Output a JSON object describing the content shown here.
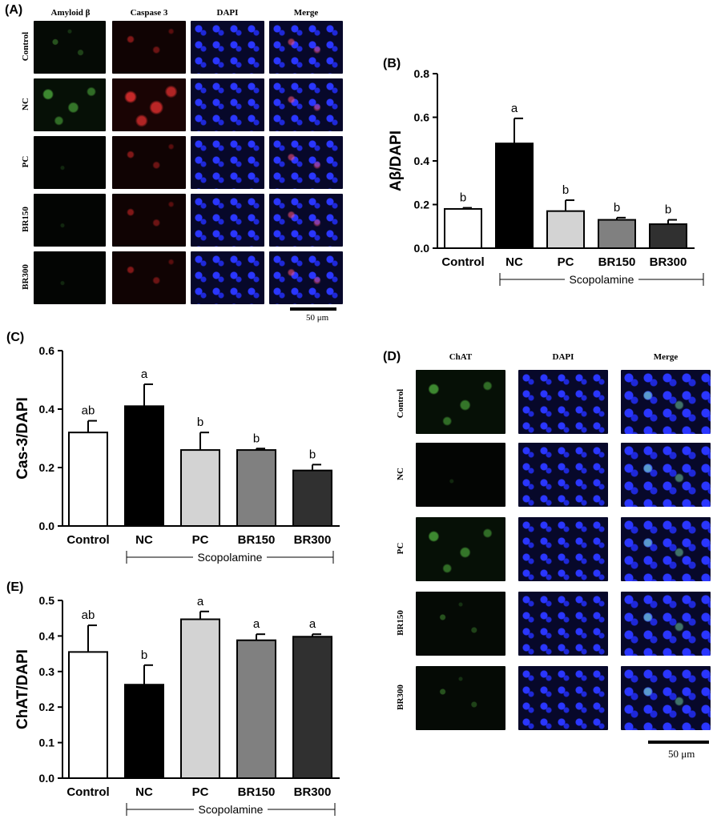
{
  "panels": {
    "A": {
      "label": "(A)",
      "columns": [
        "Amyloid β",
        "Caspase 3",
        "DAPI",
        "Merge"
      ],
      "rows": [
        "Control",
        "NC",
        "PC",
        "BR150",
        "BR300"
      ],
      "scale_text": "50 μm"
    },
    "D": {
      "label": "(D)",
      "columns": [
        "ChAT",
        "DAPI",
        "Merge"
      ],
      "rows": [
        "Control",
        "NC",
        "PC",
        "BR150",
        "BR300"
      ],
      "scale_text": "50 μm"
    }
  },
  "chart_data": [
    {
      "panel": "(B)",
      "type": "bar",
      "categories": [
        "Control",
        "NC",
        "PC",
        "BR150",
        "BR300"
      ],
      "values": [
        0.18,
        0.48,
        0.17,
        0.13,
        0.11
      ],
      "errors": [
        0.005,
        0.115,
        0.05,
        0.01,
        0.02
      ],
      "letters": [
        "b",
        "a",
        "b",
        "b",
        "b"
      ],
      "fill_colors": [
        "#ffffff",
        "#000000",
        "#d3d3d3",
        "#808080",
        "#303030"
      ],
      "ylabel": "Aβ/DAPI",
      "ylim": [
        0,
        0.8
      ],
      "yticks": [
        "0.0",
        "0.2",
        "0.4",
        "0.6",
        "0.8"
      ],
      "group_label": "Scopolamine"
    },
    {
      "panel": "(C)",
      "type": "bar",
      "categories": [
        "Control",
        "NC",
        "PC",
        "BR150",
        "BR300"
      ],
      "values": [
        0.32,
        0.41,
        0.26,
        0.26,
        0.19
      ],
      "errors": [
        0.04,
        0.075,
        0.06,
        0.005,
        0.02
      ],
      "letters": [
        "ab",
        "a",
        "b",
        "b",
        "b"
      ],
      "fill_colors": [
        "#ffffff",
        "#000000",
        "#d3d3d3",
        "#808080",
        "#303030"
      ],
      "ylabel": "Cas-3/DAPI",
      "ylim": [
        0,
        0.6
      ],
      "yticks": [
        "0.0",
        "0.2",
        "0.4",
        "0.6"
      ],
      "group_label": "Scopolamine"
    },
    {
      "panel": "(E)",
      "type": "bar",
      "categories": [
        "Control",
        "NC",
        "PC",
        "BR150",
        "BR300"
      ],
      "values": [
        0.355,
        0.263,
        0.447,
        0.388,
        0.398
      ],
      "errors": [
        0.075,
        0.055,
        0.022,
        0.017,
        0.007
      ],
      "letters": [
        "ab",
        "b",
        "a",
        "a",
        "a"
      ],
      "fill_colors": [
        "#ffffff",
        "#000000",
        "#d3d3d3",
        "#808080",
        "#303030"
      ],
      "ylabel": "ChAT/DAPI",
      "ylim": [
        0,
        0.5
      ],
      "yticks": [
        "0.0",
        "0.1",
        "0.2",
        "0.3",
        "0.4",
        "0.5"
      ],
      "group_label": "Scopolamine"
    }
  ]
}
